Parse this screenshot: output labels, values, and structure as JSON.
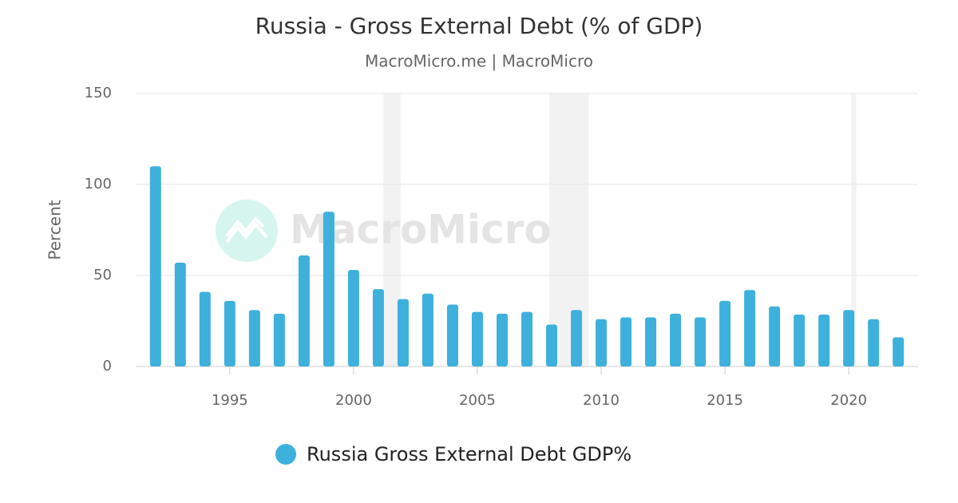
{
  "chart_data": {
    "type": "bar",
    "title": "Russia - Gross External Debt (% of GDP)",
    "subtitle": "MacroMicro.me | MacroMicro",
    "y_label": "Percent",
    "watermark": "MacroMicro",
    "x": [
      1992,
      1993,
      1994,
      1995,
      1996,
      1997,
      1998,
      1999,
      2000,
      2001,
      2002,
      2003,
      2004,
      2005,
      2006,
      2007,
      2008,
      2009,
      2010,
      2011,
      2012,
      2013,
      2014,
      2015,
      2016,
      2017,
      2018,
      2019,
      2020,
      2021,
      2022
    ],
    "series": [
      {
        "name": "Russia Gross External Debt GDP%",
        "color": "#3eb0dc",
        "values": [
          110,
          57,
          41,
          36,
          31,
          29,
          61,
          85,
          53,
          42.5,
          37,
          40,
          34,
          30,
          29,
          30,
          23,
          31,
          26,
          27,
          27,
          29,
          27,
          36,
          42,
          33,
          28.5,
          28.5,
          31,
          26,
          16
        ]
      }
    ],
    "shaded_ranges": [
      [
        2001.2,
        2001.9
      ],
      [
        2007.9,
        2009.5
      ],
      [
        2020.1,
        2020.3
      ]
    ],
    "xlim": [
      1991.2,
      2022.8
    ],
    "xticks": [
      1995,
      2000,
      2005,
      2010,
      2015,
      2020
    ],
    "ylim": [
      0,
      150
    ],
    "yticks": [
      0,
      50,
      100,
      150
    ],
    "grid": true
  }
}
